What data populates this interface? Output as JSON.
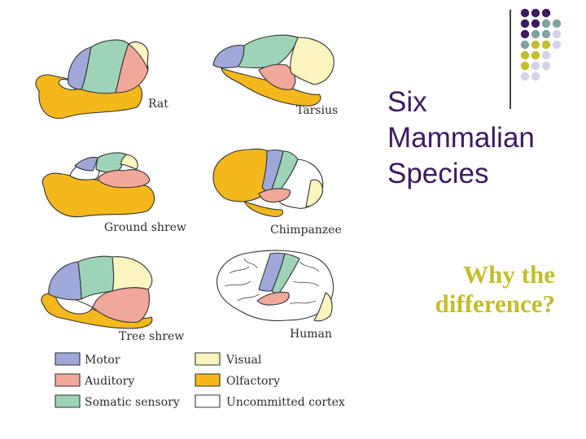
{
  "title": {
    "lines": [
      "Six",
      "Mammalian",
      "Species"
    ]
  },
  "subtitle": {
    "lines": [
      "Why the",
      "difference?"
    ]
  },
  "colors": {
    "motor": "#9fa8d8",
    "auditory": "#f2a79b",
    "somatic": "#9fd3b7",
    "visual": "#fbf4bf",
    "olfactory": "#f4b81c",
    "uncommitted": "#ffffff",
    "title": "#3d1a63",
    "subtitle": "#c2be2c",
    "dot_purple": "#3d1a63",
    "dot_teal": "#7fa3a3",
    "dot_olive": "#c2be2c",
    "dot_lavender": "#d5d3e8"
  },
  "species": {
    "rat": "Rat",
    "tarsius": "Tarsius",
    "ground_shrew": "Ground shrew",
    "chimpanzee": "Chimpanzee",
    "tree_shrew": "Tree shrew",
    "human": "Human"
  },
  "legend": {
    "motor": "Motor",
    "auditory": "Auditory",
    "somatic": "Somatic sensory",
    "visual": "Visual",
    "olfactory": "Olfactory",
    "uncommitted": "Uncommitted cortex"
  },
  "dot_grid": [
    [
      "purple",
      "purple",
      "purple"
    ],
    [
      "purple",
      "purple",
      "teal",
      "teal"
    ],
    [
      "purple",
      "teal",
      "teal",
      "lavender"
    ],
    [
      "teal",
      "olive",
      "olive",
      "lavender"
    ],
    [
      "olive",
      "olive",
      "lavender"
    ],
    [
      "olive",
      "lavender",
      "lavender"
    ],
    [
      "lavender",
      "lavender"
    ]
  ]
}
